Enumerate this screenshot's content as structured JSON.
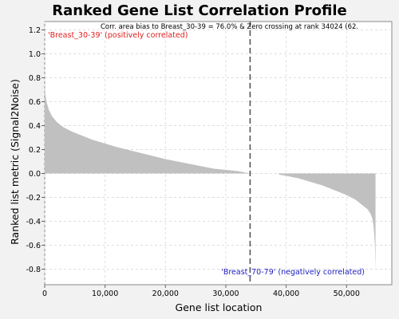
{
  "chart_data": {
    "type": "area",
    "title": "Ranked Gene List Correlation Profile",
    "xlabel": "Gene list location",
    "ylabel": "Ranked list metric (Signal2Noise)",
    "annotation": "Corr. area bias to Breast_30-39 = 76.0% & Zero crossing at rank 34024 (62.",
    "positive_label": "'Breast_30-39' (positively correlated)",
    "negative_label": "'Breast_70-79' (negatively correlated)",
    "xlim": [
      0,
      57500
    ],
    "ylim": [
      -0.93,
      1.27
    ],
    "x_ticks": [
      0,
      10000,
      20000,
      30000,
      40000,
      50000
    ],
    "x_tick_labels": [
      "0",
      "10,000",
      "20,000",
      "30,000",
      "40,000",
      "50,000"
    ],
    "y_ticks": [
      1.2,
      1.0,
      0.8,
      0.6,
      0.4,
      0.2,
      0.0,
      -0.2,
      -0.4,
      -0.6,
      -0.8
    ],
    "y_tick_labels": [
      "1.2",
      "1.0",
      "0.8",
      "0.6",
      "0.4",
      "0.2",
      "0.0",
      "-0.2",
      "-0.4",
      "-0.6",
      "-0.8"
    ],
    "zero_crossing_rank": 34024,
    "grid": true,
    "series": [
      {
        "x": [
          0,
          100,
          300,
          700,
          1200,
          2000,
          3000,
          4500,
          6000,
          8000,
          10000,
          12000,
          14000,
          16000,
          18000,
          20000,
          22000,
          24000,
          26000,
          28000,
          30000,
          32000,
          33000,
          34024,
          38800,
          40000,
          42000,
          44000,
          46000,
          48000,
          50000,
          51500,
          52500,
          53500,
          54000,
          54300,
          54500,
          54700,
          54800
        ],
        "y": [
          0.75,
          0.67,
          0.6,
          0.53,
          0.48,
          0.43,
          0.39,
          0.35,
          0.32,
          0.28,
          0.25,
          0.22,
          0.195,
          0.17,
          0.145,
          0.12,
          0.1,
          0.08,
          0.06,
          0.04,
          0.03,
          0.02,
          0.01,
          0.0,
          -0.01,
          -0.02,
          -0.04,
          -0.07,
          -0.1,
          -0.14,
          -0.18,
          -0.22,
          -0.26,
          -0.3,
          -0.34,
          -0.38,
          -0.45,
          -0.6,
          -0.82
        ]
      }
    ],
    "colors": {
      "fill": "#c0c0c0",
      "positive_label": "#e02020",
      "negative_label": "#2020c0",
      "grid": "#dedede",
      "crossing_line": "#555555"
    }
  }
}
